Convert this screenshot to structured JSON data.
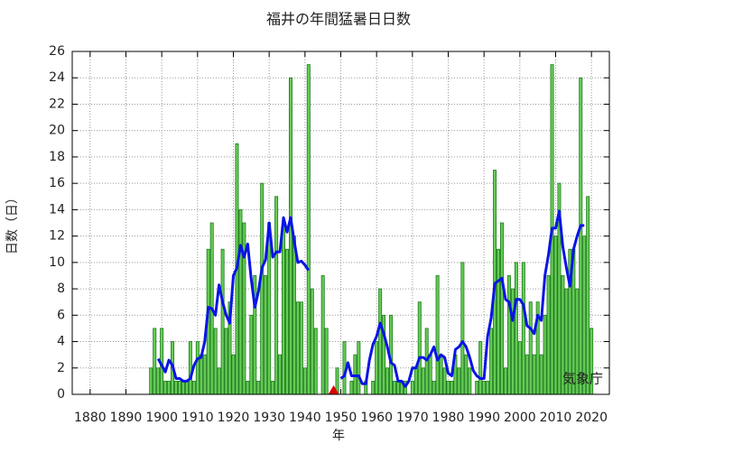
{
  "chart_data": {
    "type": "bar",
    "title": "福井の年間猛暑日日数",
    "xlabel": "年",
    "ylabel": "日数（日）",
    "annotation": "気象庁",
    "xlim": [
      1875,
      2025
    ],
    "ylim": [
      0,
      26
    ],
    "xticks": [
      1880,
      1890,
      1900,
      1910,
      1920,
      1930,
      1940,
      1950,
      1960,
      1970,
      1980,
      1990,
      2000,
      2010,
      2020
    ],
    "yticks": [
      0,
      2,
      4,
      6,
      8,
      10,
      12,
      14,
      16,
      18,
      20,
      22,
      24,
      26
    ],
    "grid": true,
    "bars": {
      "color": "#66cc55",
      "edgecolor": "#1d7a1d",
      "x": [
        1897,
        1898,
        1899,
        1900,
        1901,
        1902,
        1903,
        1904,
        1905,
        1906,
        1907,
        1908,
        1909,
        1910,
        1911,
        1912,
        1913,
        1914,
        1915,
        1916,
        1917,
        1918,
        1919,
        1920,
        1921,
        1922,
        1923,
        1924,
        1925,
        1926,
        1927,
        1928,
        1929,
        1930,
        1931,
        1932,
        1933,
        1934,
        1935,
        1936,
        1937,
        1938,
        1939,
        1940,
        1941,
        1942,
        1943,
        1944,
        1945,
        1946,
        1947,
        1948,
        1949,
        1950,
        1951,
        1952,
        1953,
        1954,
        1955,
        1956,
        1957,
        1958,
        1959,
        1960,
        1961,
        1962,
        1963,
        1964,
        1965,
        1966,
        1967,
        1968,
        1969,
        1970,
        1971,
        1972,
        1973,
        1974,
        1975,
        1976,
        1977,
        1978,
        1979,
        1980,
        1981,
        1982,
        1983,
        1984,
        1985,
        1986,
        1987,
        1988,
        1989,
        1990,
        1991,
        1992,
        1993,
        1994,
        1995,
        1996,
        1997,
        1998,
        1999,
        2000,
        2001,
        2002,
        2003,
        2004,
        2005,
        2006,
        2007,
        2008,
        2009,
        2010,
        2011,
        2012,
        2013,
        2014,
        2015,
        2016,
        2017,
        2018,
        2019,
        2020
      ],
      "values": [
        2,
        5,
        2,
        5,
        1,
        1,
        4,
        1,
        1,
        1,
        1,
        4,
        1,
        4,
        3,
        3,
        11,
        13,
        5,
        2,
        11,
        5,
        7,
        3,
        19,
        14,
        13,
        1,
        6,
        9,
        1,
        16,
        9,
        13,
        1,
        15,
        3,
        13,
        11,
        24,
        12,
        7,
        7,
        2,
        25,
        8,
        5,
        0,
        9,
        5,
        0,
        null,
        2,
        0,
        4,
        0,
        1,
        3,
        4,
        0,
        1,
        0,
        1,
        4,
        8,
        6,
        2,
        6,
        1,
        1,
        1,
        1,
        0,
        1,
        2,
        7,
        2,
        5,
        3,
        1,
        9,
        3,
        2,
        1,
        1,
        3,
        2,
        10,
        3,
        2,
        0,
        1,
        4,
        1,
        1,
        5,
        17,
        11,
        13,
        2,
        9,
        8,
        10,
        4,
        10,
        3,
        7,
        3,
        7,
        3,
        6,
        9,
        25,
        12,
        16,
        9,
        8,
        11,
        11,
        8,
        24,
        12,
        15,
        5
      ]
    },
    "line": {
      "color": "#0a14e6",
      "x": [
        1899,
        1900,
        1901,
        1902,
        1903,
        1904,
        1905,
        1906,
        1907,
        1908,
        1909,
        1910,
        1911,
        1912,
        1913,
        1914,
        1915,
        1916,
        1917,
        1918,
        1919,
        1920,
        1921,
        1922,
        1923,
        1924,
        1925,
        1926,
        1927,
        1928,
        1929,
        1930,
        1931,
        1932,
        1933,
        1934,
        1935,
        1936,
        1937,
        1938,
        1939,
        1940,
        1941,
        1942,
        1950,
        1951,
        1952,
        1953,
        1954,
        1955,
        1956,
        1957,
        1958,
        1959,
        1960,
        1961,
        1962,
        1963,
        1964,
        1965,
        1966,
        1967,
        1968,
        1969,
        1970,
        1971,
        1972,
        1973,
        1974,
        1975,
        1976,
        1977,
        1978,
        1979,
        1980,
        1981,
        1982,
        1983,
        1984,
        1985,
        1986,
        1987,
        1988,
        1989,
        1990,
        1991,
        1992,
        1993,
        1994,
        1995,
        1996,
        1997,
        1998,
        1999,
        2000,
        2001,
        2002,
        2003,
        2004,
        2005,
        2006,
        2007,
        2008,
        2009,
        2010,
        2011,
        2012,
        2013,
        2014,
        2015,
        2016,
        2017,
        2018
      ],
      "values": [
        2.7,
        2.2,
        1.7,
        2.6,
        2.2,
        1.2,
        1.2,
        1.0,
        1.0,
        1.2,
        2.2,
        2.7,
        2.8,
        4.0,
        6.6,
        6.5,
        6.0,
        8.3,
        7.0,
        6.0,
        5.4,
        9.0,
        9.6,
        11.3,
        10.4,
        11.4,
        8.7,
        6.6,
        7.8,
        9.6,
        10.2,
        13.0,
        10.4,
        10.8,
        10.8,
        13.4,
        12.3,
        13.4,
        11.6,
        10.0,
        10.1,
        9.8,
        9.4,
        null,
        1.2,
        1.4,
        2.4,
        1.4,
        1.4,
        1.4,
        0.8,
        0.8,
        2.6,
        3.8,
        4.4,
        5.4,
        4.6,
        3.6,
        2.4,
        2.2,
        1.0,
        1.0,
        0.6,
        1.0,
        2.0,
        2.0,
        2.8,
        2.8,
        2.6,
        3.0,
        3.6,
        2.6,
        3.0,
        2.8,
        1.6,
        1.4,
        3.4,
        3.6,
        4.0,
        3.6,
        2.8,
        1.8,
        1.4,
        1.2,
        1.2,
        4.4,
        5.8,
        8.4,
        8.6,
        8.8,
        7.2,
        7.0,
        5.6,
        7.2,
        7.2,
        6.8,
        5.2,
        5.0,
        4.6,
        6.0,
        5.6,
        9.0,
        10.6,
        12.6,
        12.6,
        13.9,
        11.2,
        9.6,
        8.2,
        11.0,
        12.0,
        12.8,
        12.8
      ]
    },
    "missing_markers": {
      "color": "#dd0000",
      "x": [
        1948
      ]
    }
  }
}
